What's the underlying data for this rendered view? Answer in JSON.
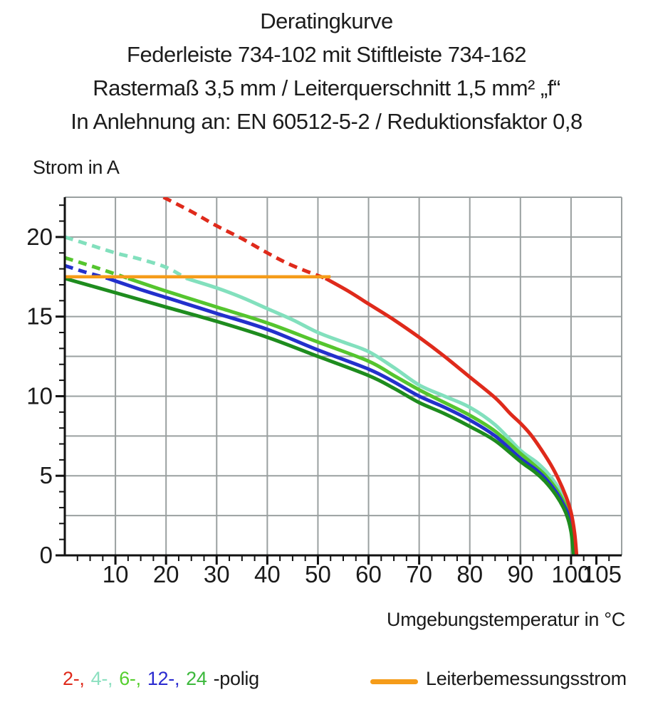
{
  "title": {
    "line1": "Deratingkurve",
    "line2": "Federleiste 734-102 mit Stiftleiste 734-162",
    "line3": "Rastermaß 3,5 mm / Leiterquerschnitt 1,5 mm² „f“",
    "line4": "In Anlehnung an: EN 60512-5-2 / Reduktionsfaktor 0,8"
  },
  "chart_data": {
    "type": "line",
    "title": "Deratingkurve",
    "xlabel": "Umgebungstemperatur in °C",
    "ylabel": "Strom in A",
    "xlim": [
      0,
      110
    ],
    "ylim": [
      0,
      22.5
    ],
    "grid": true,
    "grid_color": "#9aa0a0",
    "axis_color": "#111111",
    "x_grid_step": 10,
    "y_grid_step": 2.5,
    "x_major_ticks": [
      10,
      20,
      30,
      40,
      50,
      60,
      70,
      80,
      90,
      100,
      105
    ],
    "x_minor_step": 2.5,
    "y_major_ticks": [
      0,
      5,
      10,
      15,
      20
    ],
    "y_minor_step": 1,
    "legend_position": "bottom",
    "rated_current_A": 17.5,
    "series": [
      {
        "name": "4-polig",
        "color": "#82e0bd",
        "width": 5,
        "dash_until_x": 24,
        "points": [
          [
            0,
            20.0
          ],
          [
            5,
            19.5
          ],
          [
            10,
            19.0
          ],
          [
            15,
            18.6
          ],
          [
            20,
            18.1
          ],
          [
            24,
            17.4
          ],
          [
            30,
            16.8
          ],
          [
            35,
            16.2
          ],
          [
            40,
            15.5
          ],
          [
            45,
            14.8
          ],
          [
            50,
            14.0
          ],
          [
            55,
            13.4
          ],
          [
            60,
            12.8
          ],
          [
            65,
            11.8
          ],
          [
            70,
            10.7
          ],
          [
            75,
            10.0
          ],
          [
            80,
            9.3
          ],
          [
            85,
            8.2
          ],
          [
            90,
            6.6
          ],
          [
            93,
            5.9
          ],
          [
            95,
            5.3
          ],
          [
            97,
            4.5
          ],
          [
            98.5,
            3.7
          ],
          [
            99.5,
            3.0
          ],
          [
            100.3,
            2.0
          ],
          [
            100.7,
            1.0
          ],
          [
            100.9,
            0
          ]
        ]
      },
      {
        "name": "6-polig",
        "color": "#55c52e",
        "width": 5,
        "dash_until_x": 12.5,
        "points": [
          [
            0,
            18.7
          ],
          [
            6,
            18.1
          ],
          [
            12.5,
            17.4
          ],
          [
            20,
            16.6
          ],
          [
            30,
            15.6
          ],
          [
            40,
            14.6
          ],
          [
            50,
            13.4
          ],
          [
            60,
            12.2
          ],
          [
            65,
            11.3
          ],
          [
            70,
            10.4
          ],
          [
            75,
            9.6
          ],
          [
            80,
            8.8
          ],
          [
            85,
            7.8
          ],
          [
            90,
            6.4
          ],
          [
            93,
            5.6
          ],
          [
            95,
            5.0
          ],
          [
            97,
            4.2
          ],
          [
            98.5,
            3.4
          ],
          [
            99.5,
            2.7
          ],
          [
            100.2,
            1.8
          ],
          [
            100.6,
            0.9
          ],
          [
            100.8,
            0
          ]
        ]
      },
      {
        "name": "12-polig",
        "color": "#2330cc",
        "width": 5,
        "dash_until_x": 8.5,
        "points": [
          [
            0,
            18.2
          ],
          [
            4,
            17.8
          ],
          [
            8.5,
            17.4
          ],
          [
            15,
            16.7
          ],
          [
            20,
            16.2
          ],
          [
            30,
            15.2
          ],
          [
            40,
            14.2
          ],
          [
            50,
            12.9
          ],
          [
            60,
            11.7
          ],
          [
            65,
            10.9
          ],
          [
            70,
            10.0
          ],
          [
            75,
            9.3
          ],
          [
            80,
            8.5
          ],
          [
            85,
            7.5
          ],
          [
            90,
            6.1
          ],
          [
            93,
            5.4
          ],
          [
            95,
            4.8
          ],
          [
            97,
            4.0
          ],
          [
            98.5,
            3.2
          ],
          [
            99.5,
            2.5
          ],
          [
            100.1,
            1.6
          ],
          [
            100.4,
            0.8
          ],
          [
            100.6,
            0
          ]
        ]
      },
      {
        "name": "24-polig",
        "color": "#1e8c1e",
        "width": 5,
        "dash_until_x": null,
        "points": [
          [
            0,
            17.4
          ],
          [
            10,
            16.5
          ],
          [
            20,
            15.6
          ],
          [
            30,
            14.7
          ],
          [
            40,
            13.7
          ],
          [
            50,
            12.5
          ],
          [
            60,
            11.3
          ],
          [
            65,
            10.5
          ],
          [
            70,
            9.6
          ],
          [
            75,
            8.9
          ],
          [
            80,
            8.1
          ],
          [
            85,
            7.2
          ],
          [
            90,
            5.9
          ],
          [
            93,
            5.2
          ],
          [
            95,
            4.6
          ],
          [
            97,
            3.8
          ],
          [
            98.5,
            3.0
          ],
          [
            99.4,
            2.3
          ],
          [
            100,
            1.5
          ],
          [
            100.3,
            0.7
          ],
          [
            100.5,
            0
          ]
        ]
      },
      {
        "name": "2-polig",
        "color": "#df2a1b",
        "width": 5,
        "dash_until_x": 51.5,
        "points": [
          [
            19.5,
            22.5
          ],
          [
            25,
            21.6
          ],
          [
            30,
            20.7
          ],
          [
            35,
            19.9
          ],
          [
            40,
            19.0
          ],
          [
            45,
            18.2
          ],
          [
            51.5,
            17.4
          ],
          [
            56,
            16.6
          ],
          [
            60,
            15.8
          ],
          [
            65,
            14.8
          ],
          [
            70,
            13.7
          ],
          [
            75,
            12.5
          ],
          [
            80,
            11.2
          ],
          [
            85,
            9.9
          ],
          [
            88,
            8.9
          ],
          [
            90,
            8.3
          ],
          [
            92,
            7.6
          ],
          [
            94,
            6.7
          ],
          [
            96,
            5.7
          ],
          [
            97.5,
            4.8
          ],
          [
            99,
            3.7
          ],
          [
            100,
            2.7
          ],
          [
            100.7,
            1.4
          ],
          [
            101.1,
            0
          ]
        ]
      },
      {
        "name": "Leiterbemessungsstrom",
        "color": "#f59c1a",
        "width": 4.5,
        "dash_until_x": null,
        "points": [
          [
            0,
            17.5
          ],
          [
            26,
            17.5
          ],
          [
            52.5,
            17.5
          ]
        ]
      }
    ]
  },
  "legend": {
    "pole_items": [
      {
        "label": "2-,",
        "color": "#df2a1b"
      },
      {
        "label": "4-,",
        "color": "#8ce0c0"
      },
      {
        "label": "6-,",
        "color": "#55cf2e"
      },
      {
        "label": "12-,",
        "color": "#2a2ad0"
      },
      {
        "label": "24",
        "color": "#3cb83c"
      }
    ],
    "suffix": "-polig",
    "rated_current_label": "Leiterbemessungsstrom",
    "rated_current_color": "#f59c1a"
  }
}
